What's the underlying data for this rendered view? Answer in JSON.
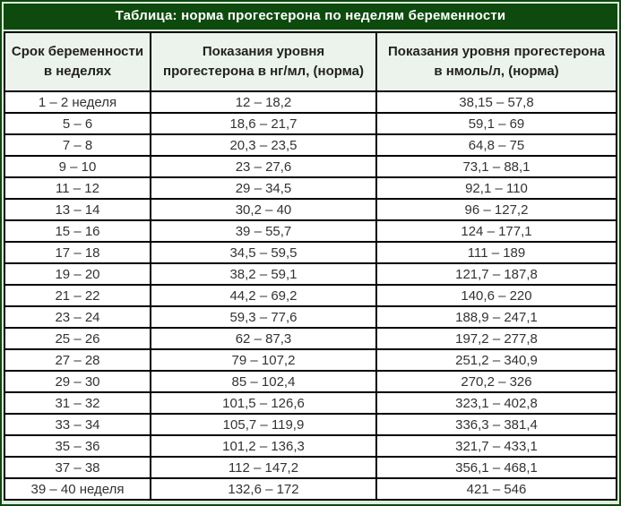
{
  "title": "Таблица: норма прогестерона по неделям беременности",
  "colors": {
    "frame_green": "#0e4a0e",
    "title_text": "#ffffff",
    "header_bg": "#ecf3ec",
    "cell_bg": "#fefffe",
    "cell_border": "#000000",
    "spacing_light_green": "#ddeedd",
    "data_text": "#333333"
  },
  "chart_data": {
    "type": "table",
    "title": "Таблица: норма прогестерона по неделям беременности",
    "columns": [
      "Срок беременности в неделях",
      "Показания уровня прогестерона в нг/мл, (норма)",
      "Показания уровня прогестерона в нмоль/л, (норма)"
    ],
    "rows": [
      [
        "1 – 2 неделя",
        "12 – 18,2",
        "38,15 – 57,8"
      ],
      [
        "5 – 6",
        "18,6 – 21,7",
        "59,1 – 69"
      ],
      [
        "7 – 8",
        "20,3 – 23,5",
        "64,8 – 75"
      ],
      [
        "9 – 10",
        "23 – 27,6",
        "73,1 – 88,1"
      ],
      [
        "11 – 12",
        "29 – 34,5",
        "92,1 – 110"
      ],
      [
        "13 – 14",
        "30,2 – 40",
        "96 – 127,2"
      ],
      [
        "15 – 16",
        "39 – 55,7",
        "124 – 177,1"
      ],
      [
        "17 – 18",
        "34,5 – 59,5",
        "111 – 189"
      ],
      [
        "19 – 20",
        "38,2 – 59,1",
        "121,7 – 187,8"
      ],
      [
        "21 – 22",
        "44,2 – 69,2",
        "140,6 – 220"
      ],
      [
        "23 – 24",
        "59,3 – 77,6",
        "188,9 – 247,1"
      ],
      [
        "25 – 26",
        "62 – 87,3",
        "197,2 – 277,8"
      ],
      [
        "27 – 28",
        "79 – 107,2",
        "251,2 – 340,9"
      ],
      [
        "29 – 30",
        "85 – 102,4",
        "270,2 – 326"
      ],
      [
        "31 – 32",
        "101,5 – 126,6",
        "323,1 – 402,8"
      ],
      [
        "33 – 34",
        "105,7 – 119,9",
        "336,3 – 381,4"
      ],
      [
        "35 – 36",
        "101,2 – 136,3",
        "321,7 – 433,1"
      ],
      [
        "37 – 38",
        "112 – 147,2",
        "356,1 – 468,1"
      ],
      [
        "39 – 40 неделя",
        "132,6 – 172",
        "421 – 546"
      ]
    ]
  }
}
